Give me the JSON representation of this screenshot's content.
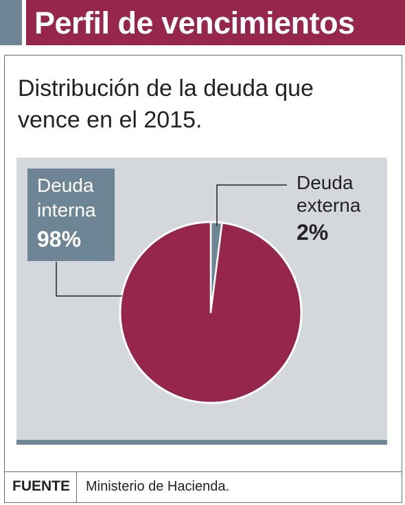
{
  "header": {
    "title": "Perfil de vencimientos"
  },
  "subtitle_lines": [
    "Distribución de la deuda que",
    "vence en el 2015."
  ],
  "colors": {
    "accent": "#97264d",
    "slate": "#6e8596",
    "chart_bg": "#d4d7db",
    "text": "#222222"
  },
  "labels": {
    "interna": {
      "line1": "Deuda",
      "line2": "interna",
      "pct": "98%"
    },
    "externa": {
      "line1": "Deuda",
      "line2": "externa",
      "pct": "2%"
    }
  },
  "source": {
    "label": "FUENTE",
    "text": "Ministerio de Hacienda."
  },
  "chart_data": {
    "type": "pie",
    "title": "Perfil de vencimientos",
    "subtitle": "Distribución de la deuda que vence en el 2015.",
    "slices": [
      {
        "label": "Deuda interna",
        "value": 98,
        "color": "#97264d"
      },
      {
        "label": "Deuda externa",
        "value": 2,
        "color": "#6e8596"
      }
    ]
  }
}
